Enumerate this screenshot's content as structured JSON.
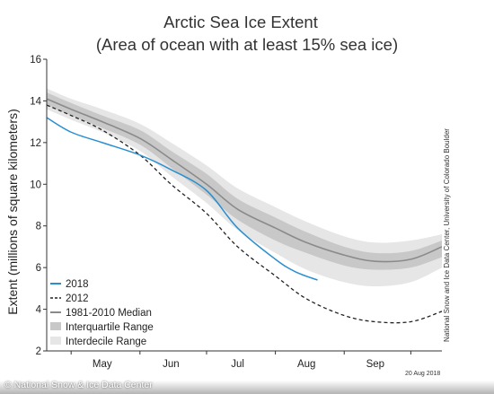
{
  "watermark": "© National Snow & Ice Data Center",
  "colors": {
    "series_2018": "#2b8fcf",
    "series_2012": "#222222",
    "median": "#8a8a8a",
    "interquartile": "#c8c8c8",
    "interdecile": "#e6e6e6"
  },
  "chart_data": {
    "type": "line",
    "title": "Arctic Sea Ice Extent",
    "subtitle": "(Area of ocean with at least 15% sea ice)",
    "ylabel": "Extent (millions of square kilometers)",
    "xlabel": "",
    "ylim": [
      2,
      16
    ],
    "yticks": [
      2,
      4,
      6,
      8,
      10,
      12,
      14,
      16
    ],
    "xlim": [
      "Apr 20",
      "Oct 15"
    ],
    "x_tick_labels": [
      {
        "label": "May",
        "date": "May 15"
      },
      {
        "label": "Jun",
        "date": "Jun 15"
      },
      {
        "label": "Jul",
        "date": "Jul 15"
      },
      {
        "label": "Aug",
        "date": "Aug 15"
      },
      {
        "label": "Sep",
        "date": "Sep 15"
      }
    ],
    "month_boundaries": [
      "May 1",
      "Jun 1",
      "Jul 1",
      "Aug 1",
      "Sep 1",
      "Oct 1"
    ],
    "credit": "National Snow and Ice Data Center, University of Colorado Boulder",
    "date_stamp": "20 Aug 2018",
    "legend_position": "bottom-left",
    "legend": [
      {
        "label": "2018",
        "style": "line-2018"
      },
      {
        "label": "2012",
        "style": "line-2012"
      },
      {
        "label": "1981-2010 Median",
        "style": "line-median"
      },
      {
        "label": "Interquartile Range",
        "style": "band-iqr"
      },
      {
        "label": "Interdecile Range",
        "style": "band-idr"
      }
    ],
    "series": [
      {
        "name": "2018",
        "x": [
          "Apr 20",
          "May 1",
          "May 15",
          "Jun 1",
          "Jun 15",
          "Jul 1",
          "Jul 15",
          "Aug 1",
          "Aug 10",
          "Aug 20"
        ],
        "values": [
          13.2,
          12.5,
          12.0,
          11.4,
          10.7,
          9.7,
          7.9,
          6.4,
          5.8,
          5.4
        ]
      },
      {
        "name": "2012",
        "x": [
          "Apr 20",
          "May 1",
          "May 15",
          "Jun 1",
          "Jun 15",
          "Jul 1",
          "Jul 15",
          "Aug 1",
          "Aug 15",
          "Sep 1",
          "Sep 15",
          "Oct 1",
          "Oct 15"
        ],
        "values": [
          13.8,
          13.3,
          12.6,
          11.4,
          10.0,
          8.6,
          7.0,
          5.6,
          4.5,
          3.7,
          3.4,
          3.4,
          3.9
        ]
      },
      {
        "name": "1981-2010 Median",
        "x": [
          "Apr 20",
          "May 1",
          "May 15",
          "Jun 1",
          "Jun 15",
          "Jul 1",
          "Jul 15",
          "Aug 1",
          "Aug 15",
          "Sep 1",
          "Sep 15",
          "Oct 1",
          "Oct 15"
        ],
        "values": [
          14.1,
          13.6,
          13.0,
          12.2,
          11.2,
          10.0,
          8.8,
          7.9,
          7.2,
          6.6,
          6.3,
          6.4,
          7.0
        ]
      }
    ],
    "bands": [
      {
        "name": "Interdecile Range",
        "x": [
          "Apr 20",
          "May 1",
          "May 15",
          "Jun 1",
          "Jun 15",
          "Jul 1",
          "Jul 15",
          "Aug 1",
          "Aug 15",
          "Sep 1",
          "Sep 15",
          "Oct 1",
          "Oct 15"
        ],
        "upper": [
          14.6,
          14.1,
          13.6,
          12.9,
          12.0,
          10.9,
          9.8,
          8.9,
          8.2,
          7.5,
          7.2,
          7.3,
          7.6
        ],
        "lower": [
          13.6,
          13.1,
          12.5,
          11.6,
          10.4,
          9.1,
          7.8,
          6.7,
          5.9,
          5.3,
          5.1,
          5.3,
          6.0
        ]
      },
      {
        "name": "Interquartile Range",
        "x": [
          "Apr 20",
          "May 1",
          "May 15",
          "Jun 1",
          "Jun 15",
          "Jul 1",
          "Jul 15",
          "Aug 1",
          "Aug 15",
          "Sep 1",
          "Sep 15",
          "Oct 1",
          "Oct 15"
        ],
        "upper": [
          14.4,
          13.9,
          13.3,
          12.6,
          11.6,
          10.5,
          9.3,
          8.4,
          7.7,
          7.0,
          6.7,
          6.8,
          7.3
        ],
        "lower": [
          13.8,
          13.3,
          12.7,
          11.9,
          10.8,
          9.5,
          8.3,
          7.3,
          6.7,
          6.1,
          5.9,
          6.0,
          6.5
        ]
      }
    ]
  }
}
